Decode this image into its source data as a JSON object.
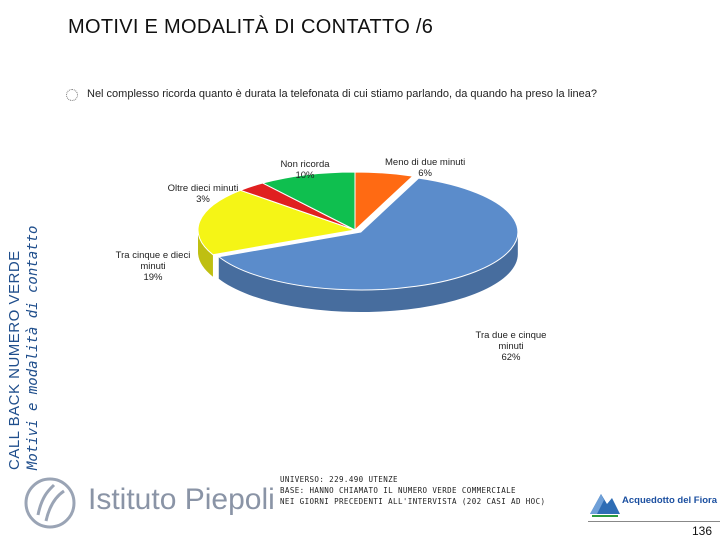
{
  "sidebar": {
    "line1": "CALL BACK NUMERO VERDE",
    "line2": "Motivi e modalità di contatto"
  },
  "title": "MOTIVI E MODALITÀ DI CONTATTO /6",
  "question": "Nel complesso ricorda quanto è durata la telefonata di cui stiamo parlando, da quando ha preso la linea?",
  "chart_data": {
    "type": "pie",
    "style": "3d",
    "slices": [
      {
        "label": "Meno di due minuti",
        "value": 6,
        "value_label": "6%",
        "color": "#ff6a13"
      },
      {
        "label": "Tra due e cinque minuti",
        "value": 62,
        "value_label": "62%",
        "color": "#5b8ccb"
      },
      {
        "label": "Tra cinque e dieci minuti",
        "value": 19,
        "value_label": "19%",
        "color": "#f5f516"
      },
      {
        "label": "Oltre dieci minuti",
        "value": 3,
        "value_label": "3%",
        "color": "#e02020"
      },
      {
        "label": "Non ricorda",
        "value": 10,
        "value_label": "10%",
        "color": "#0fbf4f"
      }
    ]
  },
  "labels": {
    "meno_1": "Meno di due minuti",
    "meno_2": "6%",
    "tra25_1": "Tra due e cinque",
    "tra25_2": "minuti",
    "tra25_3": "62%",
    "tra510_1": "Tra cinque e dieci",
    "tra510_2": "minuti",
    "tra510_3": "19%",
    "oltre_1": "Oltre dieci minuti",
    "oltre_2": "3%",
    "nonric_1": "Non ricorda",
    "nonric_2": "10%"
  },
  "footer": {
    "logo": "Istituto Piepoli",
    "note_line1": "UNIVERSO: 229.490 UTENZE",
    "note_line2": "BASE: HANNO CHIAMATO IL NUMERO VERDE COMMERCIALE",
    "note_line3": "NEI GIORNI PRECEDENTI ALL'INTERVISTA (202 CASI AD HOC)",
    "brand": "Acquedotto del Fiora",
    "page": "136"
  }
}
